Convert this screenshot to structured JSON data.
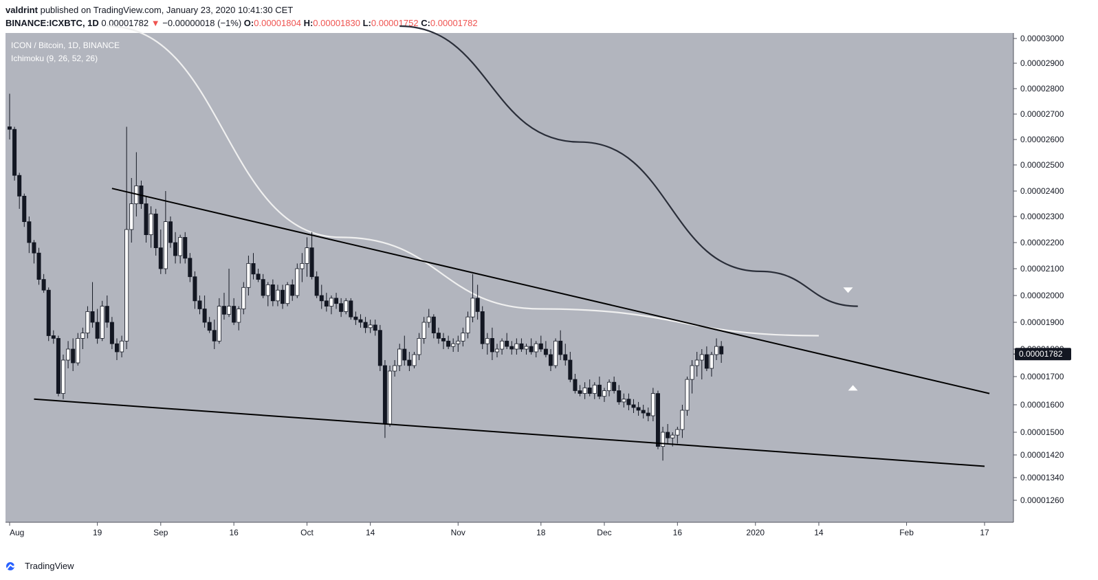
{
  "header": {
    "publisher": "valdrint",
    "published_text": "published on TradingView.com, January 23, 2020 10:41:30 CET",
    "symbol": "BINANCE:ICXBTC, 1D",
    "last_price": "0.00001782",
    "change": "−0.00000018 (−1%)",
    "o_label": "O:",
    "o_value": "0.00001804",
    "h_label": "H:",
    "h_value": "0.00001830",
    "l_label": "L:",
    "l_value": "0.00001752",
    "c_label": "C:",
    "c_value": "0.00001782"
  },
  "legend": {
    "title": "ICON / Bitcoin, 1D, BINANCE",
    "indicator": "Ichimoku (9, 26, 52, 26)"
  },
  "footer": {
    "brand": "TradingView"
  },
  "colors": {
    "plot_bg": "#b2b5be",
    "price_tag": "#131722",
    "down_text": "#ef5350"
  },
  "chart_data": {
    "type": "candlestick",
    "price_axis_ticks": [
      "0.00003000",
      "0.00002900",
      "0.00002800",
      "0.00002700",
      "0.00002600",
      "0.00002500",
      "0.00002400",
      "0.00002300",
      "0.00002200",
      "0.00002100",
      "0.00002000",
      "0.00001900",
      "0.00001800",
      "0.00001700",
      "0.00001600",
      "0.00001500",
      "0.00001420",
      "0.00001340",
      "0.00001260"
    ],
    "time_axis_ticks": [
      "Aug",
      "19",
      "Sep",
      "16",
      "Oct",
      "14",
      "Nov",
      "18",
      "Dec",
      "16",
      "2020",
      "14",
      "Feb",
      "17"
    ],
    "time_axis_dates": [
      "2019-08-01",
      "2019-08-19",
      "2019-09-01",
      "2019-09-16",
      "2019-10-01",
      "2019-10-14",
      "2019-11-01",
      "2019-11-18",
      "2019-12-01",
      "2019-12-16",
      "2020-01-01",
      "2020-01-14",
      "2020-02-01",
      "2020-02-17"
    ],
    "current_price_label": "0.00001782",
    "ohlc_daily_approx": [
      [
        2650,
        2780,
        2600,
        2640
      ],
      [
        2640,
        2650,
        2440,
        2460
      ],
      [
        2460,
        2470,
        2330,
        2380
      ],
      [
        2380,
        2390,
        2260,
        2280
      ],
      [
        2280,
        2300,
        2160,
        2200
      ],
      [
        2200,
        2210,
        2120,
        2160
      ],
      [
        2160,
        2180,
        2040,
        2060
      ],
      [
        2060,
        2080,
        2010,
        2020
      ],
      [
        2020,
        2030,
        1830,
        1850
      ],
      [
        1850,
        1870,
        1820,
        1840
      ],
      [
        1840,
        1850,
        1630,
        1640
      ],
      [
        1640,
        1780,
        1620,
        1760
      ],
      [
        1760,
        1830,
        1730,
        1800
      ],
      [
        1800,
        1840,
        1720,
        1750
      ],
      [
        1750,
        1860,
        1740,
        1840
      ],
      [
        1840,
        1880,
        1800,
        1860
      ],
      [
        1860,
        1960,
        1840,
        1940
      ],
      [
        1940,
        2050,
        1880,
        1900
      ],
      [
        1900,
        1950,
        1820,
        1840
      ],
      [
        1840,
        1980,
        1830,
        1960
      ],
      [
        1960,
        2000,
        1880,
        1900
      ],
      [
        1900,
        1920,
        1800,
        1820
      ],
      [
        1820,
        1840,
        1760,
        1790
      ],
      [
        1790,
        1850,
        1770,
        1830
      ],
      [
        1830,
        2650,
        1800,
        2250
      ],
      [
        2250,
        2450,
        2200,
        2350
      ],
      [
        2350,
        2550,
        2300,
        2420
      ],
      [
        2420,
        2440,
        2330,
        2350
      ],
      [
        2350,
        2380,
        2200,
        2230
      ],
      [
        2230,
        2340,
        2180,
        2310
      ],
      [
        2310,
        2330,
        2150,
        2180
      ],
      [
        2180,
        2250,
        2080,
        2100
      ],
      [
        2100,
        2400,
        2080,
        2280
      ],
      [
        2280,
        2300,
        2180,
        2200
      ],
      [
        2200,
        2240,
        2120,
        2150
      ],
      [
        2150,
        2230,
        2120,
        2220
      ],
      [
        2220,
        2240,
        2120,
        2140
      ],
      [
        2140,
        2160,
        2050,
        2070
      ],
      [
        2070,
        2090,
        1950,
        1980
      ],
      [
        1980,
        2000,
        1930,
        1950
      ],
      [
        1950,
        2000,
        1880,
        1900
      ],
      [
        1900,
        1920,
        1860,
        1870
      ],
      [
        1870,
        1910,
        1800,
        1830
      ],
      [
        1830,
        1990,
        1820,
        1960
      ],
      [
        1960,
        2010,
        1910,
        1930
      ],
      [
        1930,
        2100,
        1920,
        1960
      ],
      [
        1960,
        1990,
        1890,
        1900
      ],
      [
        1900,
        1960,
        1870,
        1950
      ],
      [
        1950,
        2050,
        1930,
        2030
      ],
      [
        2030,
        2150,
        2000,
        2120
      ],
      [
        2120,
        2160,
        2060,
        2080
      ],
      [
        2080,
        2100,
        2050,
        2060
      ],
      [
        2060,
        2080,
        1990,
        2000
      ],
      [
        2000,
        2050,
        1960,
        2040
      ],
      [
        2040,
        2060,
        1960,
        1980
      ],
      [
        1980,
        2040,
        1960,
        2020
      ],
      [
        2020,
        2040,
        1950,
        1970
      ],
      [
        1970,
        2050,
        1960,
        2040
      ],
      [
        2040,
        2060,
        1980,
        2000
      ],
      [
        2000,
        2120,
        1990,
        2100
      ],
      [
        2100,
        2160,
        2050,
        2120
      ],
      [
        2120,
        2220,
        2070,
        2180
      ],
      [
        2180,
        2240,
        2060,
        2070
      ],
      [
        2070,
        2090,
        1990,
        2000
      ],
      [
        2000,
        2040,
        1950,
        1980
      ],
      [
        1980,
        2010,
        1940,
        1960
      ],
      [
        1960,
        2000,
        1930,
        1990
      ],
      [
        1990,
        2010,
        1950,
        1970
      ],
      [
        1970,
        1990,
        1920,
        1940
      ],
      [
        1940,
        1990,
        1930,
        1980
      ],
      [
        1980,
        1990,
        1910,
        1920
      ],
      [
        1920,
        1940,
        1890,
        1910
      ],
      [
        1910,
        1930,
        1880,
        1900
      ],
      [
        1900,
        1920,
        1860,
        1880
      ],
      [
        1880,
        1910,
        1860,
        1890
      ],
      [
        1890,
        1910,
        1850,
        1870
      ],
      [
        1870,
        1890,
        1720,
        1740
      ],
      [
        1740,
        1760,
        1480,
        1530
      ],
      [
        1530,
        1740,
        1520,
        1720
      ],
      [
        1720,
        1760,
        1700,
        1740
      ],
      [
        1740,
        1820,
        1720,
        1800
      ],
      [
        1800,
        1850,
        1740,
        1760
      ],
      [
        1760,
        1790,
        1720,
        1740
      ],
      [
        1740,
        1790,
        1730,
        1780
      ],
      [
        1780,
        1860,
        1760,
        1840
      ],
      [
        1840,
        1920,
        1820,
        1900
      ],
      [
        1900,
        1950,
        1880,
        1920
      ],
      [
        1920,
        1930,
        1840,
        1860
      ],
      [
        1860,
        1880,
        1820,
        1840
      ],
      [
        1840,
        1860,
        1800,
        1830
      ],
      [
        1830,
        1850,
        1800,
        1810
      ],
      [
        1810,
        1840,
        1790,
        1820
      ],
      [
        1820,
        1850,
        1790,
        1830
      ],
      [
        1830,
        1880,
        1810,
        1860
      ],
      [
        1860,
        1940,
        1840,
        1920
      ],
      [
        1920,
        2080,
        1900,
        1990
      ],
      [
        1990,
        2040,
        1910,
        1940
      ],
      [
        1940,
        1960,
        1800,
        1820
      ],
      [
        1820,
        1860,
        1780,
        1840
      ],
      [
        1840,
        1880,
        1760,
        1790
      ],
      [
        1790,
        1820,
        1770,
        1800
      ],
      [
        1800,
        1840,
        1780,
        1830
      ],
      [
        1830,
        1860,
        1800,
        1810
      ],
      [
        1810,
        1830,
        1780,
        1800
      ],
      [
        1800,
        1840,
        1780,
        1820
      ],
      [
        1820,
        1840,
        1790,
        1800
      ],
      [
        1800,
        1820,
        1780,
        1810
      ],
      [
        1810,
        1840,
        1780,
        1790
      ],
      [
        1790,
        1830,
        1770,
        1820
      ],
      [
        1820,
        1850,
        1790,
        1800
      ],
      [
        1800,
        1830,
        1770,
        1780
      ],
      [
        1780,
        1800,
        1720,
        1740
      ],
      [
        1740,
        1840,
        1730,
        1830
      ],
      [
        1830,
        1870,
        1760,
        1780
      ],
      [
        1780,
        1820,
        1740,
        1760
      ],
      [
        1760,
        1790,
        1680,
        1690
      ],
      [
        1690,
        1710,
        1640,
        1650
      ],
      [
        1650,
        1670,
        1630,
        1640
      ],
      [
        1640,
        1680,
        1620,
        1660
      ],
      [
        1660,
        1690,
        1630,
        1640
      ],
      [
        1640,
        1680,
        1620,
        1670
      ],
      [
        1670,
        1700,
        1620,
        1630
      ],
      [
        1630,
        1660,
        1610,
        1650
      ],
      [
        1650,
        1690,
        1630,
        1680
      ],
      [
        1680,
        1700,
        1640,
        1650
      ],
      [
        1650,
        1670,
        1600,
        1610
      ],
      [
        1610,
        1640,
        1590,
        1620
      ],
      [
        1620,
        1640,
        1580,
        1600
      ],
      [
        1600,
        1620,
        1570,
        1590
      ],
      [
        1590,
        1610,
        1560,
        1580
      ],
      [
        1580,
        1600,
        1550,
        1570
      ],
      [
        1570,
        1590,
        1540,
        1560
      ],
      [
        1560,
        1660,
        1540,
        1640
      ],
      [
        1640,
        1650,
        1440,
        1450
      ],
      [
        1450,
        1520,
        1400,
        1500
      ],
      [
        1500,
        1530,
        1460,
        1480
      ],
      [
        1480,
        1500,
        1450,
        1490
      ],
      [
        1490,
        1520,
        1460,
        1510
      ],
      [
        1510,
        1600,
        1480,
        1580
      ],
      [
        1580,
        1700,
        1560,
        1690
      ],
      [
        1690,
        1760,
        1640,
        1740
      ],
      [
        1740,
        1790,
        1700,
        1760
      ],
      [
        1760,
        1800,
        1690,
        1780
      ],
      [
        1780,
        1810,
        1720,
        1730
      ],
      [
        1730,
        1790,
        1700,
        1780
      ],
      [
        1780,
        1840,
        1760,
        1810
      ],
      [
        1810,
        1830,
        1750,
        1782
      ]
    ],
    "lines": [
      {
        "kind": "descending resistance trendline",
        "from": {
          "date": "2019-08-22",
          "price": 2.41e-05
        },
        "to": {
          "date": "2020-02-18",
          "price": 1.64e-05
        }
      },
      {
        "kind": "descending support trendline",
        "from": {
          "date": "2019-08-06",
          "price": 1.62e-05
        },
        "to": {
          "date": "2020-02-17",
          "price": 1.38e-05
        }
      }
    ],
    "moving_averages": [
      {
        "color": "#f0f0f0",
        "points": [
          [
            3.05e-05,
            "2019-08-21"
          ],
          [
            2.22e-05,
            "2019-10-08"
          ],
          [
            1.95e-05,
            "2019-11-18"
          ],
          [
            1.85e-05,
            "2020-01-14"
          ]
        ]
      },
      {
        "color": "#2a2e39",
        "points": [
          [
            3.05e-05,
            "2019-10-20"
          ],
          [
            2.59e-05,
            "2019-11-26"
          ],
          [
            2.09e-05,
            "2020-01-02"
          ],
          [
            1.96e-05,
            "2020-01-22"
          ]
        ]
      }
    ],
    "markers": [
      {
        "shape": "triangle-down",
        "price": 2.02e-05,
        "date": "2020-01-20"
      },
      {
        "shape": "triangle-up",
        "price": 1.66e-05,
        "date": "2020-01-21"
      }
    ]
  }
}
